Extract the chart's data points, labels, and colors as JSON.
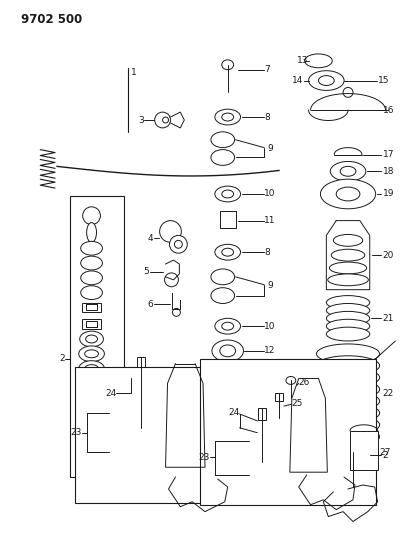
{
  "title": "9702 500",
  "bg_color": "#ffffff",
  "line_color": "#1a1a1a",
  "title_fontsize": 8.5,
  "label_fontsize": 6.5,
  "fig_w": 4.11,
  "fig_h": 5.33,
  "dpi": 100
}
